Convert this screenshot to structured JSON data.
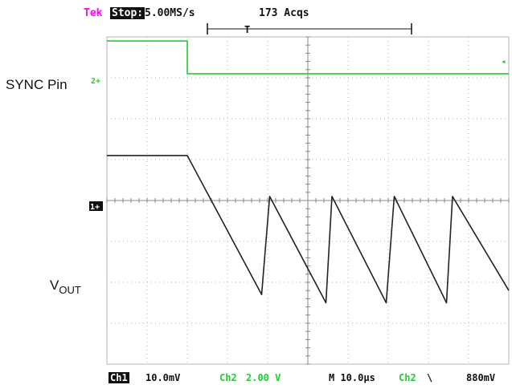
{
  "window": {
    "title": ""
  },
  "header": {
    "brand": "Tek",
    "state": "Stop:",
    "sample_rate": "5.00MS/s",
    "acquisitions": "173 Acqs",
    "trigger_marker": "T"
  },
  "labels": {
    "sync": "SYNC Pin",
    "vout_main": "V",
    "vout_sub": "OUT"
  },
  "markers": {
    "ch2": "2+",
    "ch1": "1+"
  },
  "footer": {
    "ch1_tag": "Ch1",
    "ch1_scale": "10.0mV",
    "ch2_tag": "Ch2",
    "ch2_scale": "2.00 V",
    "timebase": "M 10.0µs",
    "trig_src": "Ch2",
    "trig_slope": "\\",
    "trig_level": "880mV"
  },
  "colors": {
    "ch2_trace": "#22cc33",
    "ch1_trace": "#222222",
    "grid": "#b5b5b5",
    "brand": "#ff00ff"
  },
  "chart_data": {
    "type": "line",
    "title": "",
    "xlabel": "",
    "ylabel": "",
    "xlim": [
      0,
      100
    ],
    "ylim": [
      -4,
      4
    ],
    "x_unit": "µs (10.0µs/div)",
    "y_unit": "div",
    "grid": true,
    "series": [
      {
        "name": "SYNC Pin",
        "color": "#22cc33",
        "x": [
          0,
          20,
          20,
          100
        ],
        "y": [
          3.9,
          3.9,
          3.1,
          3.1
        ]
      },
      {
        "name": "VOUT",
        "color": "#222222",
        "x": [
          0,
          20,
          38.5,
          40.5,
          54.5,
          56,
          69.5,
          71.5,
          84.5,
          86,
          100
        ],
        "y": [
          1.1,
          1.1,
          -2.3,
          0.1,
          -2.5,
          0.1,
          -2.5,
          0.1,
          -2.5,
          0.1,
          -2.2
        ]
      }
    ]
  }
}
